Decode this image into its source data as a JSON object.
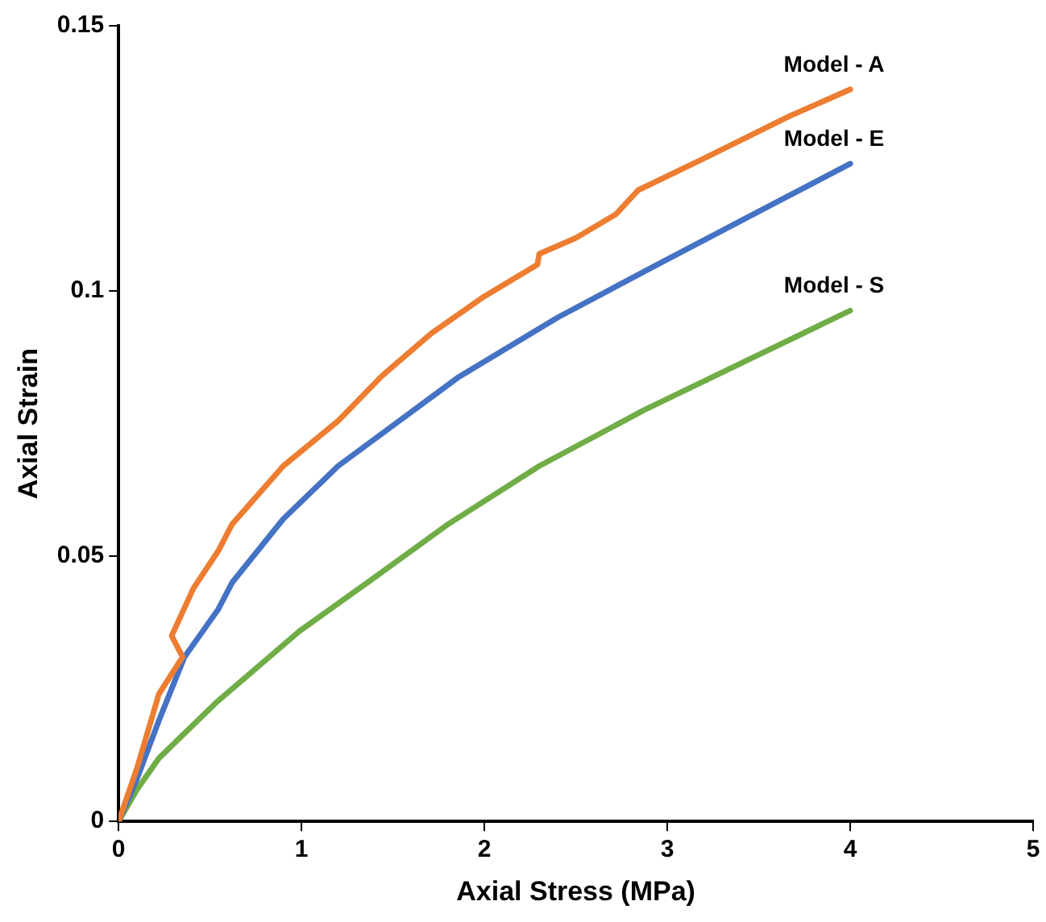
{
  "chart_data": {
    "type": "line",
    "xlabel": "Axial Stress (MPa)",
    "ylabel": "Axial Strain",
    "xlim": [
      0,
      5
    ],
    "xticks": [
      0,
      1,
      2,
      3,
      4,
      5
    ],
    "ylim": [
      0,
      0.15
    ],
    "yticks": [
      0,
      {
        "value": 0.05,
        "label": "0.05"
      },
      {
        "value": 0.1,
        "label": "0.1"
      },
      {
        "value": 0.15,
        "label": "0.15"
      }
    ],
    "grid": false,
    "legend": false,
    "marker": "none",
    "line_style": "solid",
    "series": [
      {
        "name": "Model - A",
        "color": "#ed7d31",
        "x": [
          0,
          0.1,
          0.22,
          0.35,
          0.29,
          0.41,
          0.545,
          0.62,
          0.9,
          1.2,
          1.44,
          1.71,
          2.0,
          2.29,
          2.3,
          2.5,
          2.72,
          2.84,
          3.2,
          3.67,
          4.0
        ],
        "values": [
          0,
          0.01,
          0.024,
          0.031,
          0.035,
          0.044,
          0.051,
          0.056,
          0.067,
          0.0755,
          0.084,
          0.092,
          0.099,
          0.105,
          0.107,
          0.11,
          0.1145,
          0.119,
          0.125,
          0.133,
          0.138
        ]
      },
      {
        "name": "Model - E",
        "color": "#4472c4",
        "x": [
          0,
          0.1,
          0.22,
          0.36,
          0.545,
          0.62,
          0.9,
          1.2,
          1.75,
          1.86,
          2.4,
          2.93,
          3.5,
          4.0
        ],
        "values": [
          0,
          0.008,
          0.019,
          0.031,
          0.04,
          0.045,
          0.057,
          0.067,
          0.081,
          0.0838,
          0.095,
          0.1047,
          0.115,
          0.124
        ]
      },
      {
        "name": "Model - S",
        "color": "#70ad47",
        "x": [
          0,
          0.1,
          0.22,
          0.53,
          0.99,
          1.4,
          1.8,
          2.3,
          2.87,
          3.5,
          4.0
        ],
        "values": [
          0,
          0.006,
          0.0119,
          0.0223,
          0.0359,
          0.046,
          0.056,
          0.067,
          0.0775,
          0.088,
          0.0963
        ]
      }
    ]
  }
}
